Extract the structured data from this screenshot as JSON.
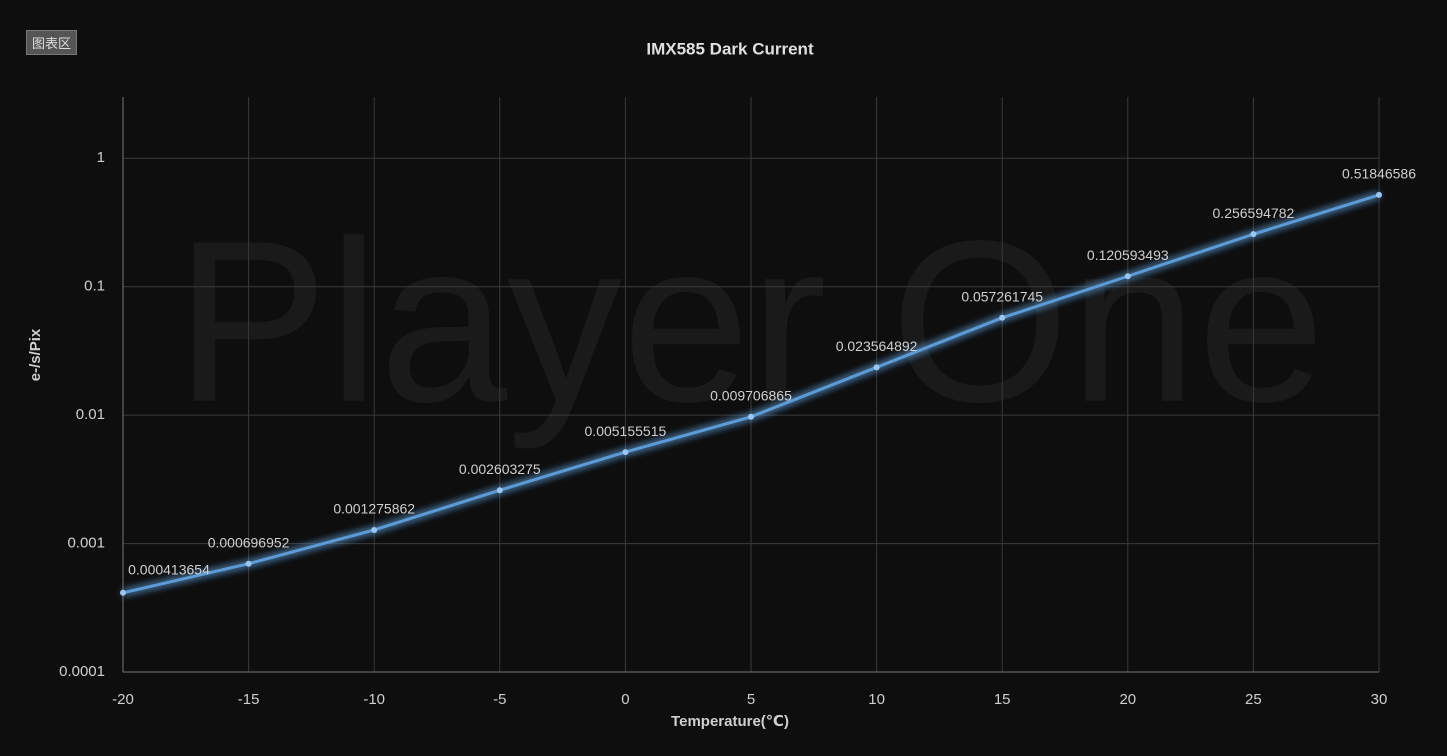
{
  "badge": "图表区",
  "chart_data": {
    "type": "line",
    "title": "IMX585 Dark Current",
    "watermark": "Player One",
    "x_label": "Temperature(℃)",
    "y_label": "e-/s/Pix",
    "x": [
      -20,
      -15,
      -10,
      -5,
      0,
      5,
      10,
      15,
      20,
      25,
      30
    ],
    "series": [
      {
        "name": "IMX585",
        "color": "#5b9bd5",
        "values": [
          0.000413654,
          0.000696952,
          0.001275862,
          0.002603275,
          0.005155515,
          0.009706865,
          0.023564892,
          0.057261745,
          0.120593493,
          0.256594782,
          0.51846586
        ]
      }
    ],
    "xlim": [
      -20,
      30
    ],
    "xticks": [
      -20,
      -15,
      -10,
      -5,
      0,
      5,
      10,
      15,
      20,
      25,
      30
    ],
    "ylim": [
      0.0001,
      3
    ],
    "yticks": [
      0.0001,
      0.001,
      0.01,
      0.1,
      1
    ],
    "y_scale": "log",
    "grid": true
  }
}
